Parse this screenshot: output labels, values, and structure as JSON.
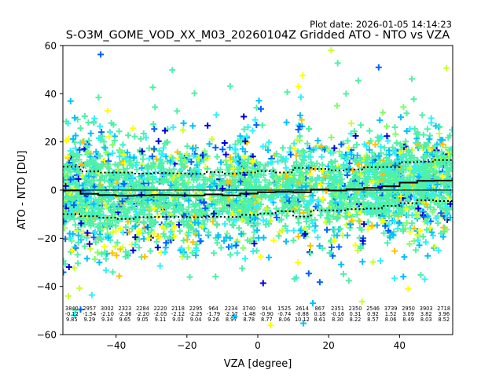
{
  "plot_date": "Plot date: 2026-01-05 14:14:23",
  "chart_data": {
    "type": "scatter",
    "title": "S-O3M_GOME_VOD_XX_M03_20260104Z Gridded ATO - NTO vs VZA",
    "xlabel": "VZA [degree]",
    "ylabel": "ATO - NTO [DU]",
    "xlim": [
      -55,
      55
    ],
    "ylim": [
      -60,
      60
    ],
    "xticks": [
      -40,
      -20,
      0,
      20,
      40
    ],
    "xtick_labels": [
      "−40",
      "−20",
      "0",
      "20",
      "40"
    ],
    "yticks": [
      -60,
      -40,
      -20,
      0,
      20,
      40,
      60
    ],
    "ytick_labels": [
      "−60",
      "−40",
      "−20",
      "0",
      "20",
      "40",
      "60"
    ],
    "grid": false,
    "colormap": [
      "#0000d8",
      "#0060ff",
      "#00c0ff",
      "#30f0ff",
      "#50f0a8",
      "#80ff60",
      "#c8ff30",
      "#ffff00",
      "#ffc000"
    ],
    "series_colors": {
      "mean_line": "#000000",
      "stddev_line": "#000000",
      "zero_line": "#000000"
    },
    "bins": {
      "bin_width": 5,
      "centers": [
        -52.5,
        -47.5,
        -42.5,
        -37.5,
        -32.5,
        -27.5,
        -22.5,
        -17.5,
        -12.5,
        -7.5,
        -2.5,
        2.5,
        7.5,
        12.5,
        17.5,
        22.5,
        27.5,
        32.5,
        37.5,
        42.5,
        47.5,
        52.5
      ],
      "count_labels": [
        "3840",
        "2957",
        "3002",
        "2323",
        "2284",
        "2220",
        "2118",
        "2295",
        "964",
        "2234",
        "3740",
        "914",
        "1525",
        "2614",
        "867",
        "2351",
        "2350",
        "2546",
        "3739",
        "2950",
        "3903",
        "2718"
      ],
      "mean_labels": [
        "-0.12",
        "-1.54",
        "-2.10",
        "-2.36",
        "-2.20",
        "-2.05",
        "-2.12",
        "-2.25",
        "-1.79",
        "-2.17",
        "-1.48",
        "-0.90",
        "-0.74",
        "-0.88",
        "0.18",
        "-0.16",
        "0.31",
        "0.92",
        "1.52",
        "3.09",
        "3.82",
        "3.96"
      ],
      "stddev_labels": [
        "9.85",
        "9.29",
        "9.34",
        "9.65",
        "9.05",
        "9.11",
        "9.03",
        "9.04",
        "9.26",
        "8.97",
        "8.78",
        "8.77",
        "8.06",
        "10.12",
        "8.61",
        "8.30",
        "8.22",
        "8.57",
        "8.06",
        "8.49",
        "8.03",
        "8.52"
      ],
      "count": [
        3840,
        2957,
        3002,
        2323,
        2284,
        2220,
        2118,
        2295,
        964,
        2234,
        3740,
        914,
        1525,
        2614,
        867,
        2351,
        2350,
        2546,
        3739,
        2950,
        3903,
        2718
      ],
      "mean": [
        -0.12,
        -1.54,
        -2.1,
        -2.36,
        -2.2,
        -2.05,
        -2.12,
        -2.25,
        -1.79,
        -2.17,
        -1.48,
        -0.9,
        -0.74,
        -0.88,
        0.18,
        -0.16,
        0.31,
        0.92,
        1.52,
        3.09,
        3.82,
        3.96
      ],
      "stddev": [
        9.85,
        9.29,
        9.34,
        9.65,
        9.05,
        9.11,
        9.03,
        9.04,
        9.26,
        8.97,
        8.78,
        8.77,
        8.06,
        10.12,
        8.61,
        8.3,
        8.22,
        8.57,
        8.06,
        8.49,
        8.03,
        8.52
      ]
    }
  }
}
